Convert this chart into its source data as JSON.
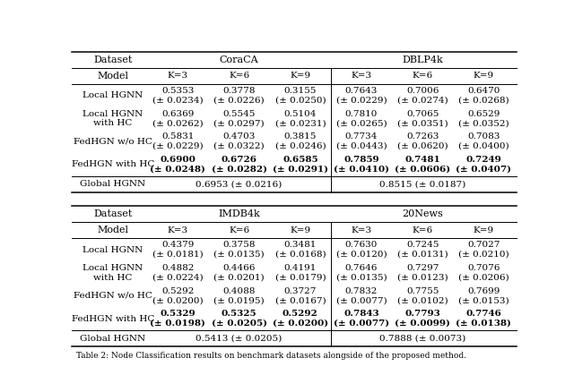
{
  "caption": "Table 2: Node Classification results on benchmark datasets alongside of the proposed method.",
  "top_table": {
    "datasets": [
      "CoraCA",
      "DBLP4k"
    ],
    "k_values": [
      "K=3",
      "K=6",
      "K=9"
    ],
    "data": {
      "CoraCA": {
        "Local HGNN": [
          [
            "0.5353",
            "(± 0.0234)"
          ],
          [
            "0.3778",
            "(± 0.0226)"
          ],
          [
            "0.3155",
            "(± 0.0250)"
          ]
        ],
        "Local HGNN\nwith HC": [
          [
            "0.6369",
            "(± 0.0262)"
          ],
          [
            "0.5545",
            "(± 0.0297)"
          ],
          [
            "0.5104",
            "(± 0.0231)"
          ]
        ],
        "FedHGN w/o HC": [
          [
            "0.5831",
            "(± 0.0229)"
          ],
          [
            "0.4703",
            "(± 0.0322)"
          ],
          [
            "0.3815",
            "(± 0.0246)"
          ]
        ],
        "FedHGN with HC": [
          [
            "0.6900",
            "(± 0.0248)"
          ],
          [
            "0.6726",
            "(± 0.0282)"
          ],
          [
            "0.6585",
            "(± 0.0291)"
          ]
        ],
        "Global HGNN": "0.6953 (± 0.0216)"
      },
      "DBLP4k": {
        "Local HGNN": [
          [
            "0.7643",
            "(± 0.0229)"
          ],
          [
            "0.7006",
            "(± 0.0274)"
          ],
          [
            "0.6470",
            "(± 0.0268)"
          ]
        ],
        "Local HGNN\nwith HC": [
          [
            "0.7810",
            "(± 0.0265)"
          ],
          [
            "0.7065",
            "(± 0.0351)"
          ],
          [
            "0.6529",
            "(± 0.0352)"
          ]
        ],
        "FedHGN w/o HC": [
          [
            "0.7734",
            "(± 0.0443)"
          ],
          [
            "0.7263",
            "(± 0.0620)"
          ],
          [
            "0.7083",
            "(± 0.0400)"
          ]
        ],
        "FedHGN with HC": [
          [
            "0.7859",
            "(± 0.0410)"
          ],
          [
            "0.7481",
            "(± 0.0606)"
          ],
          [
            "0.7249",
            "(± 0.0407)"
          ]
        ],
        "Global HGNN": "0.8515 (± 0.0187)"
      }
    }
  },
  "bottom_table": {
    "datasets": [
      "IMDB4k",
      "20News"
    ],
    "k_values": [
      "K=3",
      "K=6",
      "K=9"
    ],
    "data": {
      "IMDB4k": {
        "Local HGNN": [
          [
            "0.4379",
            "(± 0.0181)"
          ],
          [
            "0.3758",
            "(± 0.0135)"
          ],
          [
            "0.3481",
            "(± 0.0168)"
          ]
        ],
        "Local HGNN\nwith HC": [
          [
            "0.4882",
            "(± 0.0224)"
          ],
          [
            "0.4466",
            "(± 0.0201)"
          ],
          [
            "0.4191",
            "(± 0.0179)"
          ]
        ],
        "FedHGN w/o HC": [
          [
            "0.5292",
            "(± 0.0200)"
          ],
          [
            "0.4088",
            "(± 0.0195)"
          ],
          [
            "0.3727",
            "(± 0.0167)"
          ]
        ],
        "FedHGN with HC": [
          [
            "0.5329",
            "(± 0.0198)"
          ],
          [
            "0.5325",
            "(± 0.0205)"
          ],
          [
            "0.5292",
            "(± 0.0200)"
          ]
        ],
        "Global HGNN": "0.5413 (± 0.0205)"
      },
      "20News": {
        "Local HGNN": [
          [
            "0.7630",
            "(± 0.0120)"
          ],
          [
            "0.7245",
            "(± 0.0131)"
          ],
          [
            "0.7027",
            "(± 0.0210)"
          ]
        ],
        "Local HGNN\nwith HC": [
          [
            "0.7646",
            "(± 0.0135)"
          ],
          [
            "0.7297",
            "(± 0.0123)"
          ],
          [
            "0.7076",
            "(± 0.0206)"
          ]
        ],
        "FedHGN w/o HC": [
          [
            "0.7832",
            "(± 0.0077)"
          ],
          [
            "0.7755",
            "(± 0.0102)"
          ],
          [
            "0.7699",
            "(± 0.0153)"
          ]
        ],
        "FedHGN with HC": [
          [
            "0.7843",
            "(± 0.0077)"
          ],
          [
            "0.7793",
            "(± 0.0099)"
          ],
          [
            "0.7746",
            "(± 0.0138)"
          ]
        ],
        "Global HGNN": "0.7888 (± 0.0073)"
      }
    }
  },
  "bg_color": "#ffffff",
  "text_color": "#000000",
  "font_size": 7.5
}
